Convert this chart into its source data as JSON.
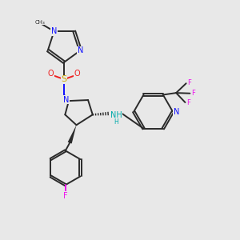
{
  "background_color": "#e8e8e8",
  "bond_color": "#2a2a2a",
  "bond_width": 1.4,
  "figsize": [
    3.0,
    3.0
  ],
  "dpi": 100,
  "colors": {
    "N": "#1010ff",
    "S": "#ccaa00",
    "O": "#ee2020",
    "F": "#ee10ee",
    "NH": "#00aaaa",
    "C": "#2a2a2a"
  },
  "fs": 8.0,
  "fs_small": 7.0,
  "fs_sub": 5.5
}
